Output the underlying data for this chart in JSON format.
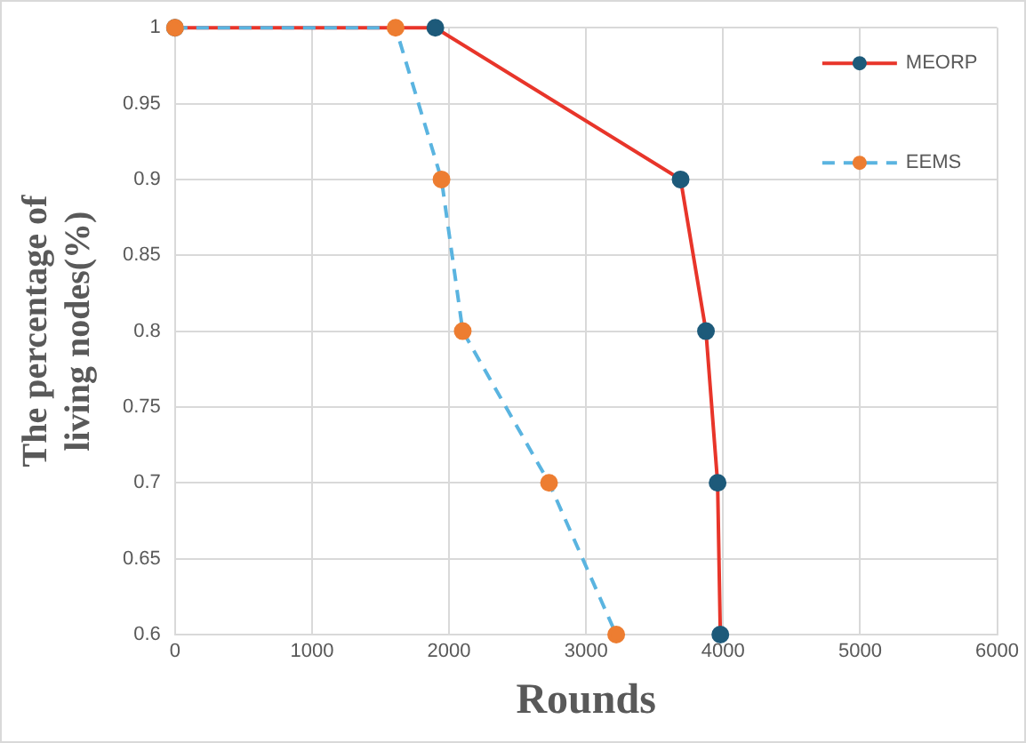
{
  "chart_data": {
    "type": "line",
    "xlabel": "Rounds",
    "ylabel": "The percentage of living nodes(%)",
    "xlim": [
      0,
      6000
    ],
    "xticks": [
      0,
      1000,
      2000,
      3000,
      4000,
      5000,
      6000
    ],
    "ylim": [
      0.6,
      1
    ],
    "yticks": [
      0.6,
      0.65,
      0.7,
      0.75,
      0.8,
      0.85,
      0.9,
      0.95,
      1
    ],
    "grid": true,
    "legend": "top right",
    "marker": "circle",
    "series": [
      {
        "name": "MEORP",
        "color": "#e8352a",
        "colors": [
          "#1d5a7a",
          "#1d5a7a",
          "#1d5a7a",
          "#1d5a7a",
          "#1d5a7a",
          "#1d5a7a"
        ],
        "line_style": "solid",
        "x": [
          0,
          1900,
          3690,
          3875,
          3960,
          3980
        ],
        "values": [
          1,
          1,
          0.9,
          0.8,
          0.7,
          0.6
        ]
      },
      {
        "name": "EEMS",
        "color": "#5ab4e0",
        "colors": [
          "#ed7d31",
          "#ed7d31",
          "#ed7d31",
          "#ed7d31",
          "#ed7d31",
          "#ed7d31"
        ],
        "line_style": "dashed",
        "x": [
          0,
          1610,
          1945,
          2100,
          2730,
          3220
        ],
        "values": [
          1,
          1,
          0.9,
          0.8,
          0.7,
          0.6
        ]
      }
    ]
  }
}
